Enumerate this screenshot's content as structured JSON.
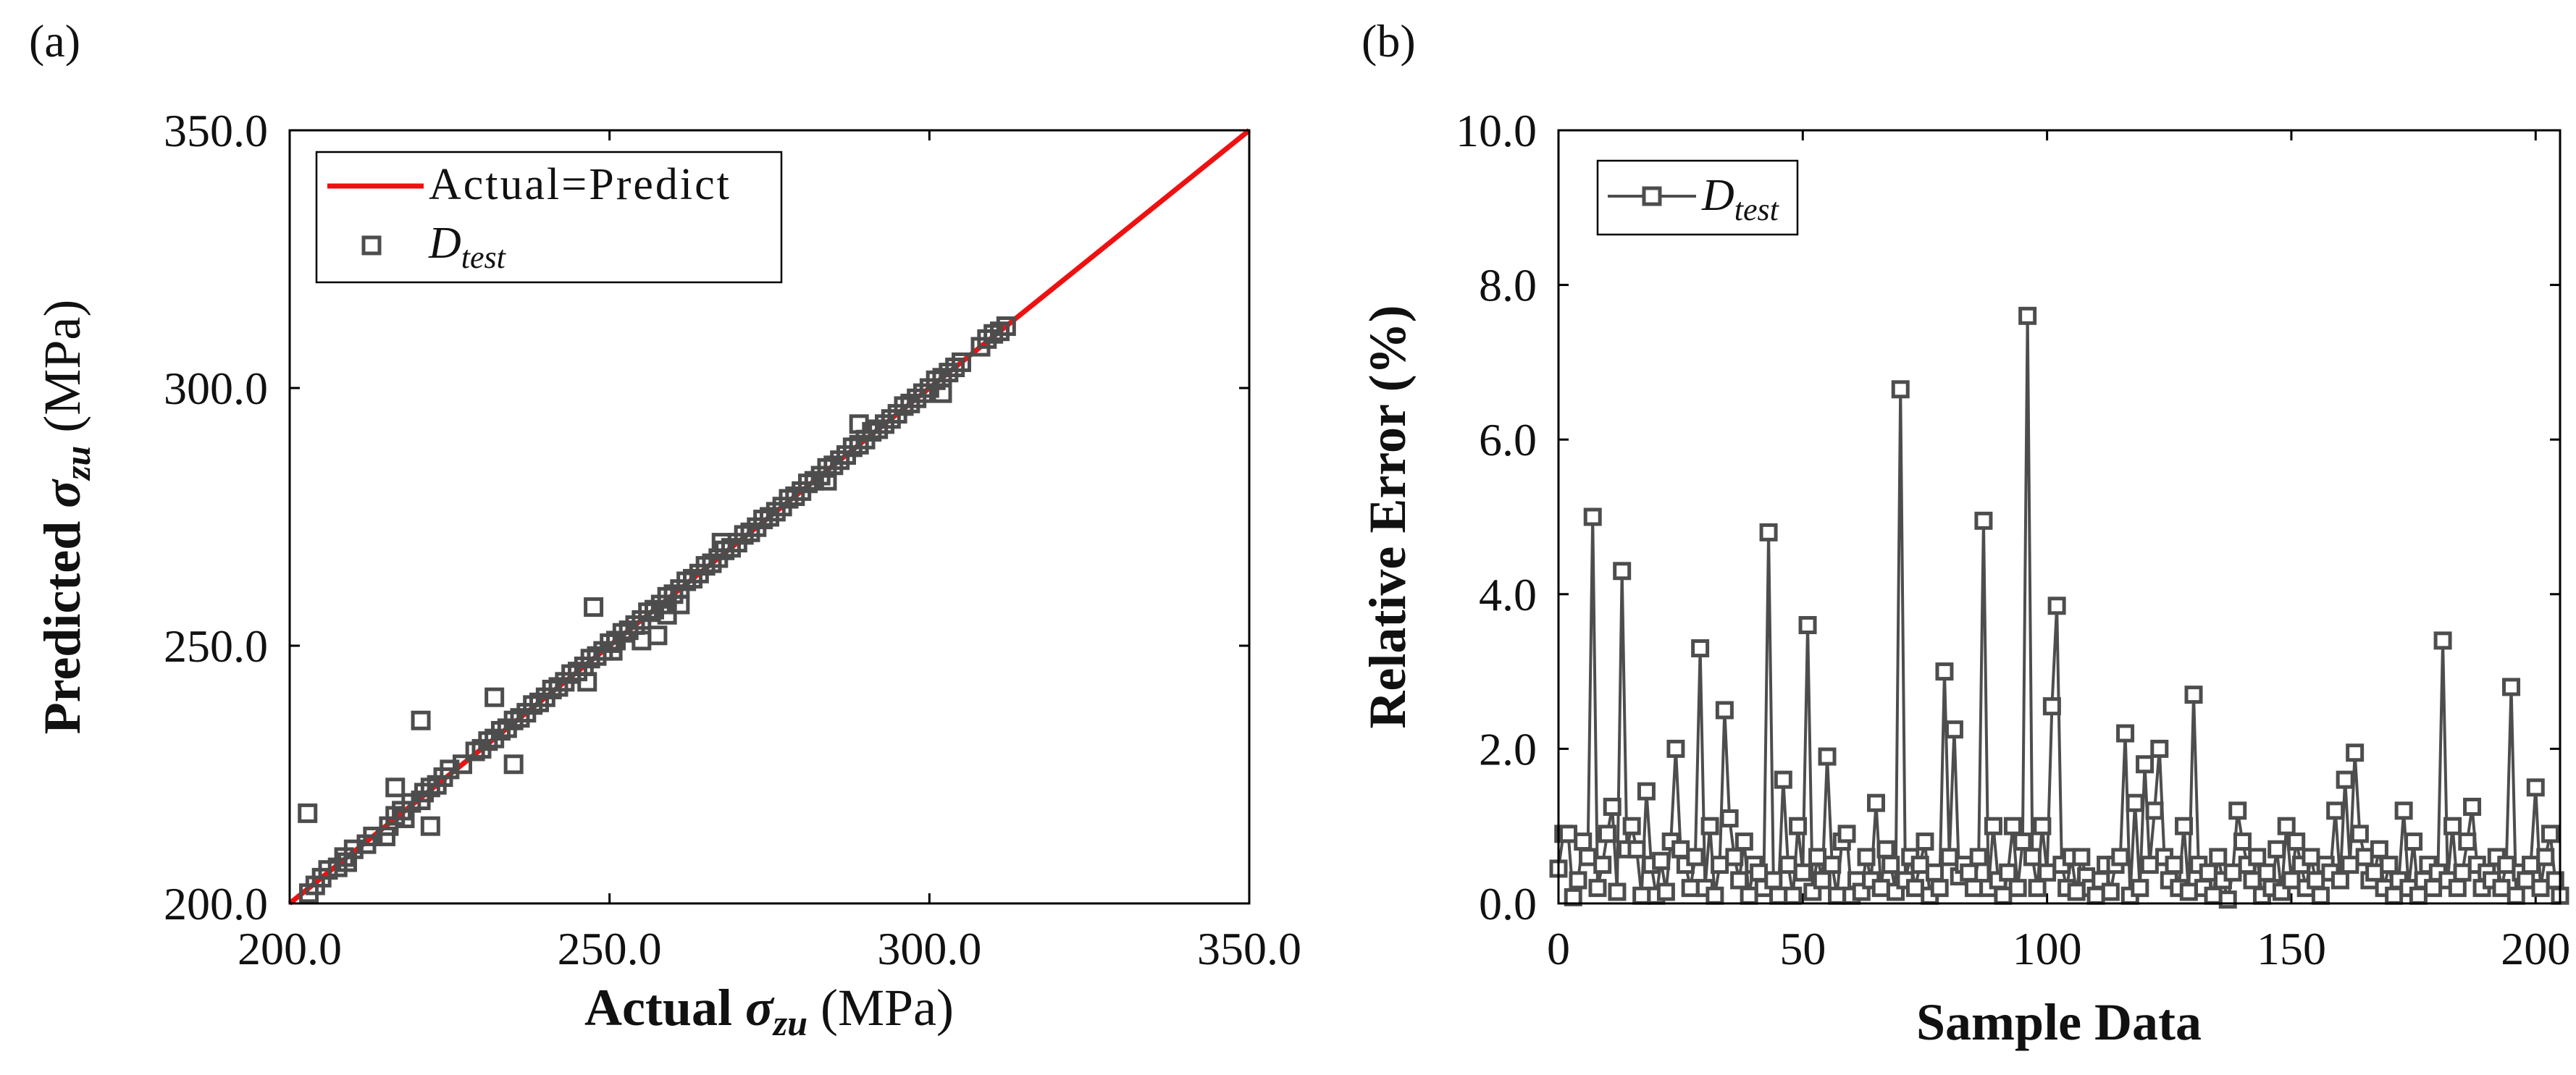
{
  "panels": {
    "a": {
      "label": "(a)"
    },
    "b": {
      "label": "(b)"
    }
  },
  "colors": {
    "fit_line": "#ee1111",
    "marker": "#4d4d4d",
    "axis": "#000000"
  },
  "chart_data": [
    {
      "id": "a",
      "type": "scatter",
      "title": "",
      "xlabel": {
        "bold": "Actual",
        "sym": "σ",
        "sub": "zu",
        "unit": " (MPa)"
      },
      "ylabel": {
        "bold": "Predicted",
        "sym": "σ",
        "sub": "zu",
        "unit": " (MPa)"
      },
      "xlim": [
        200,
        350
      ],
      "ylim": [
        200,
        350
      ],
      "xticks": [
        200,
        250,
        300,
        350
      ],
      "yticks": [
        200,
        250,
        300,
        350
      ],
      "xtick_labels": [
        "200.0",
        "250.0",
        "300.0",
        "350.0"
      ],
      "ytick_labels": [
        "200.0",
        "250.0",
        "300.0",
        "350.0"
      ],
      "grid": false,
      "legend": {
        "position": "top-left",
        "entries": [
          {
            "main": "Actual=Predict",
            "sub": ""
          },
          {
            "main": "D",
            "sub": "test"
          }
        ]
      },
      "series": [
        {
          "name": "Actual=Predict",
          "kind": "line",
          "x": [
            200,
            350
          ],
          "y": [
            200,
            350
          ]
        },
        {
          "name": "D_test",
          "kind": "markers",
          "x": [
            203.0,
            204.0,
            205.0,
            206.0,
            207.5,
            208.5,
            209.0,
            210.0,
            212.0,
            213.0,
            215.5,
            216.5,
            217.5,
            218.0,
            219.0,
            220.5,
            221.0,
            222.0,
            223.0,
            224.0,
            225.0,
            227.0,
            229.0,
            230.0,
            231.0,
            232.0,
            233.0,
            234.0,
            235.0,
            236.0,
            237.0,
            238.0,
            239.0,
            240.0,
            241.0,
            242.0,
            243.0,
            244.0,
            245.0,
            246.0,
            247.0,
            248.0,
            249.0,
            250.0,
            251.0,
            252.0,
            253.0,
            254.0,
            255.0,
            256.0,
            257.0,
            258.0,
            259.0,
            260.0,
            261.0,
            262.0,
            263.0,
            264.0,
            265.0,
            266.0,
            267.0,
            268.0,
            269.0,
            270.0,
            271.0,
            272.0,
            273.0,
            274.0,
            275.0,
            276.0,
            277.0,
            278.0,
            279.0,
            280.0,
            281.0,
            282.0,
            283.0,
            284.0,
            285.0,
            286.0,
            287.0,
            288.0,
            289.0,
            290.0,
            291.0,
            292.0,
            293.0,
            294.0,
            295.0,
            296.0,
            297.0,
            298.0,
            299.0,
            300.0,
            301.0,
            302.0,
            303.0,
            304.0,
            305.0,
            308.0,
            309.0,
            310.0,
            311.0,
            312.0,
            202.8,
            215.0,
            216.5,
            220.5,
            222.0,
            232.0,
            235.0,
            246.5,
            247.5,
            250.5,
            255.0,
            257.5,
            259.0,
            261.0,
            267.5,
            284.0,
            289.0,
            302.0
          ],
          "y": [
            202.0,
            203.5,
            205.0,
            206.5,
            207.0,
            209.0,
            208.0,
            210.5,
            211.5,
            213.0,
            215.0,
            217.0,
            218.0,
            216.5,
            219.5,
            220.0,
            221.5,
            222.5,
            223.0,
            224.5,
            226.0,
            227.0,
            229.5,
            230.0,
            231.5,
            232.0,
            233.5,
            234.0,
            235.5,
            236.0,
            237.0,
            238.5,
            239.0,
            240.0,
            241.5,
            242.0,
            243.0,
            244.5,
            245.0,
            246.0,
            247.5,
            248.0,
            249.0,
            250.5,
            251.0,
            252.5,
            253.0,
            254.0,
            255.0,
            256.5,
            257.0,
            258.0,
            259.5,
            260.0,
            261.0,
            262.5,
            263.0,
            264.0,
            265.5,
            266.0,
            267.0,
            268.5,
            269.0,
            270.0,
            271.5,
            272.0,
            273.0,
            274.5,
            275.0,
            276.0,
            277.0,
            278.5,
            279.0,
            280.0,
            281.5,
            282.0,
            283.0,
            284.5,
            285.0,
            286.0,
            287.0,
            288.5,
            289.0,
            290.0,
            291.5,
            292.0,
            293.0,
            294.0,
            295.0,
            296.5,
            297.0,
            298.0,
            299.0,
            300.0,
            301.5,
            302.0,
            303.0,
            304.0,
            305.0,
            308.0,
            309.5,
            310.5,
            311.0,
            312.0,
            217.5,
            213.0,
            222.5,
            235.5,
            215.0,
            240.0,
            227.0,
            243.0,
            257.5,
            249.0,
            251.0,
            252.0,
            256.0,
            258.0,
            270.0,
            282.0,
            293.0,
            299.0
          ]
        }
      ]
    },
    {
      "id": "b",
      "type": "line",
      "title": "",
      "xlabel": "Sample Data",
      "ylabel": "Relative Error (%)",
      "xlim": [
        0,
        205
      ],
      "ylim": [
        0,
        10
      ],
      "xticks": [
        0,
        50,
        100,
        150,
        200
      ],
      "yticks": [
        0,
        2,
        4,
        6,
        8,
        10
      ],
      "xtick_labels": [
        "0",
        "50",
        "100",
        "150",
        "200"
      ],
      "ytick_labels": [
        "0.0",
        "2.0",
        "4.0",
        "6.0",
        "8.0",
        "10.0"
      ],
      "grid": false,
      "legend": {
        "position": "top-left",
        "entries": [
          {
            "main": "D",
            "sub": "test"
          }
        ]
      },
      "series": [
        {
          "name": "D_test",
          "values": [
            0.45,
            0.9,
            0.9,
            0.08,
            0.3,
            0.8,
            0.6,
            5.0,
            0.2,
            0.5,
            0.9,
            1.25,
            0.15,
            4.3,
            0.7,
            1.0,
            0.7,
            0.1,
            1.45,
            0.5,
            0.1,
            0.55,
            0.15,
            0.8,
            2.0,
            0.7,
            0.5,
            0.2,
            0.6,
            3.3,
            0.2,
            1.0,
            0.1,
            0.5,
            2.5,
            1.1,
            0.6,
            0.3,
            0.8,
            0.1,
            0.5,
            0.4,
            0.2,
            4.8,
            0.3,
            0.1,
            1.6,
            0.5,
            0.1,
            1.0,
            0.4,
            3.6,
            0.15,
            0.6,
            0.3,
            1.9,
            0.5,
            0.1,
            0.8,
            0.9,
            0.1,
            0.3,
            0.15,
            0.6,
            0.3,
            1.3,
            0.2,
            0.7,
            0.5,
            0.15,
            6.65,
            0.3,
            0.6,
            0.2,
            0.5,
            0.8,
            0.1,
            0.4,
            0.2,
            3.0,
            0.6,
            2.25,
            0.35,
            0.5,
            0.4,
            0.2,
            0.6,
            4.95,
            0.2,
            1.0,
            0.3,
            0.1,
            0.4,
            1.0,
            0.2,
            0.8,
            7.6,
            0.6,
            0.2,
            1.0,
            0.4,
            2.55,
            3.85,
            0.5,
            0.2,
            0.6,
            0.15,
            0.6,
            0.35,
            0.2,
            0.1,
            0.3,
            0.5,
            0.15,
            0.5,
            0.6,
            2.2,
            0.1,
            1.3,
            0.2,
            1.8,
            0.5,
            1.2,
            2.0,
            0.6,
            0.3,
            0.5,
            0.2,
            1.0,
            0.15,
            2.7,
            0.5,
            0.2,
            0.4,
            0.1,
            0.6,
            0.3,
            0.05,
            0.4,
            1.2,
            0.8,
            0.5,
            0.3,
            0.6,
            0.1,
            0.4,
            0.2,
            0.7,
            0.15,
            1.0,
            0.3,
            0.8,
            0.5,
            0.2,
            0.6,
            0.3,
            0.1,
            0.5,
            0.4,
            1.2,
            0.3,
            1.6,
            0.5,
            1.95,
            0.9,
            0.6,
            0.3,
            0.4,
            0.7,
            0.2,
            0.5,
            0.1,
            0.3,
            1.2,
            0.2,
            0.8,
            0.1,
            0.3,
            0.5,
            0.2,
            0.4,
            3.4,
            0.3,
            1.0,
            0.2,
            0.4,
            0.8,
            1.25,
            0.5,
            0.2,
            0.4,
            0.3,
            0.6,
            0.2,
            0.5,
            2.8,
            0.1,
            0.4,
            0.3,
            0.5,
            1.5,
            0.2,
            0.6,
            0.9,
            0.3,
            0.1
          ]
        }
      ]
    }
  ]
}
